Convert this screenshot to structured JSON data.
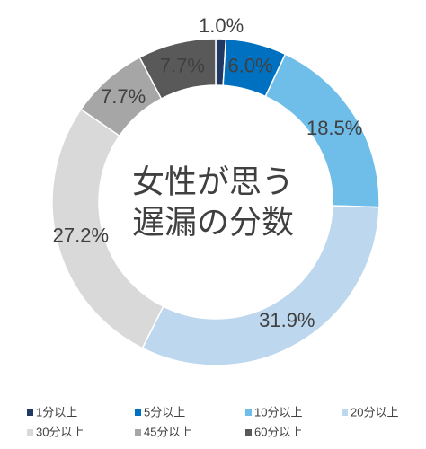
{
  "chart_data": {
    "type": "donut",
    "title": [
      "女性が思う",
      "遅漏の分数"
    ],
    "categories": [
      "1分以上",
      "5分以上",
      "10分以上",
      "20分以上",
      "30分以上",
      "45分以上",
      "60分以上"
    ],
    "values": [
      1.0,
      6.0,
      18.5,
      31.9,
      27.2,
      7.7,
      7.7
    ],
    "value_labels": [
      "1.0%",
      "6.0%",
      "18.5%",
      "31.9%",
      "27.2%",
      "7.7%",
      "7.7%"
    ],
    "colors": [
      "#1f3864",
      "#0070c0",
      "#6fbde9",
      "#bdd7ee",
      "#d9d9d9",
      "#a6a6a6",
      "#595959"
    ],
    "legend": "bottom"
  }
}
